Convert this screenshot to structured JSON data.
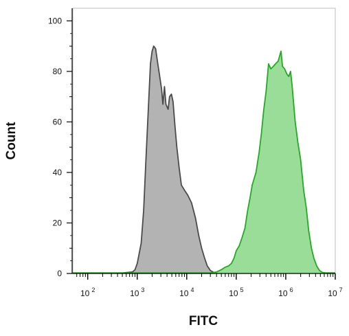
{
  "chart_data": {
    "type": "area",
    "xlabel": "FITC",
    "ylabel": "Count",
    "xscale": "log",
    "xlim": [
      50,
      10000000
    ],
    "ylim": [
      0,
      105
    ],
    "y_ticks": [
      "0",
      "20",
      "40",
      "60",
      "80",
      "100"
    ],
    "x_ticks": [
      {
        "base": "10",
        "exp": "2",
        "value": 100
      },
      {
        "base": "10",
        "exp": "3",
        "value": 1000
      },
      {
        "base": "10",
        "exp": "4",
        "value": 10000
      },
      {
        "base": "10",
        "exp": "5",
        "value": 100000
      },
      {
        "base": "10",
        "exp": "6",
        "value": 1000000
      },
      {
        "base": "10",
        "exp": "7",
        "value": 10000000
      }
    ],
    "grid": false,
    "series": [
      {
        "fill": "#b3b3b3",
        "stroke": "#4a4a4a",
        "points": [
          [
            50,
            0.2
          ],
          [
            500,
            0.2
          ],
          [
            800,
            0.6
          ],
          [
            900,
            1.5
          ],
          [
            1000,
            4
          ],
          [
            1200,
            12
          ],
          [
            1350,
            25
          ],
          [
            1500,
            45
          ],
          [
            1700,
            68
          ],
          [
            1850,
            83
          ],
          [
            2000,
            88
          ],
          [
            2150,
            90
          ],
          [
            2350,
            89
          ],
          [
            2600,
            83
          ],
          [
            2850,
            78
          ],
          [
            3100,
            73
          ],
          [
            3300,
            67
          ],
          [
            3550,
            74
          ],
          [
            3800,
            67
          ],
          [
            4200,
            65
          ],
          [
            4500,
            70
          ],
          [
            4900,
            71
          ],
          [
            5300,
            68
          ],
          [
            5800,
            58
          ],
          [
            6300,
            50
          ],
          [
            7000,
            42
          ],
          [
            7800,
            35
          ],
          [
            9000,
            33
          ],
          [
            10500,
            31
          ],
          [
            12500,
            28
          ],
          [
            15000,
            22
          ],
          [
            17500,
            15
          ],
          [
            20000,
            10
          ],
          [
            23000,
            6
          ],
          [
            26000,
            3
          ],
          [
            30000,
            1.2
          ],
          [
            36000,
            0.3
          ],
          [
            45000,
            0.2
          ],
          [
            10000000,
            0.2
          ]
        ]
      },
      {
        "fill": "#99dd99",
        "stroke": "#22aa22",
        "points": [
          [
            50,
            0.2
          ],
          [
            30000,
            0.2
          ],
          [
            40000,
            0.6
          ],
          [
            50000,
            1.5
          ],
          [
            60000,
            2.5
          ],
          [
            70000,
            3
          ],
          [
            80000,
            4
          ],
          [
            90000,
            6
          ],
          [
            100000,
            9
          ],
          [
            115000,
            11
          ],
          [
            130000,
            14
          ],
          [
            150000,
            18
          ],
          [
            170000,
            25
          ],
          [
            190000,
            30
          ],
          [
            210000,
            35
          ],
          [
            250000,
            40
          ],
          [
            290000,
            48
          ],
          [
            320000,
            55
          ],
          [
            360000,
            65
          ],
          [
            400000,
            72
          ],
          [
            450000,
            83
          ],
          [
            500000,
            81
          ],
          [
            560000,
            82
          ],
          [
            620000,
            83
          ],
          [
            700000,
            84
          ],
          [
            800000,
            88
          ],
          [
            860000,
            82
          ],
          [
            950000,
            81
          ],
          [
            1050000,
            79
          ],
          [
            1150000,
            78
          ],
          [
            1250000,
            80
          ],
          [
            1350000,
            74
          ],
          [
            1550000,
            60
          ],
          [
            1750000,
            52
          ],
          [
            2000000,
            45
          ],
          [
            2300000,
            33
          ],
          [
            2600000,
            26
          ],
          [
            2900000,
            17
          ],
          [
            3300000,
            10
          ],
          [
            3700000,
            6
          ],
          [
            4200000,
            3
          ],
          [
            4800000,
            1.2
          ],
          [
            5500000,
            0.4
          ],
          [
            6500000,
            0.2
          ],
          [
            10000000,
            0.2
          ]
        ]
      }
    ]
  }
}
